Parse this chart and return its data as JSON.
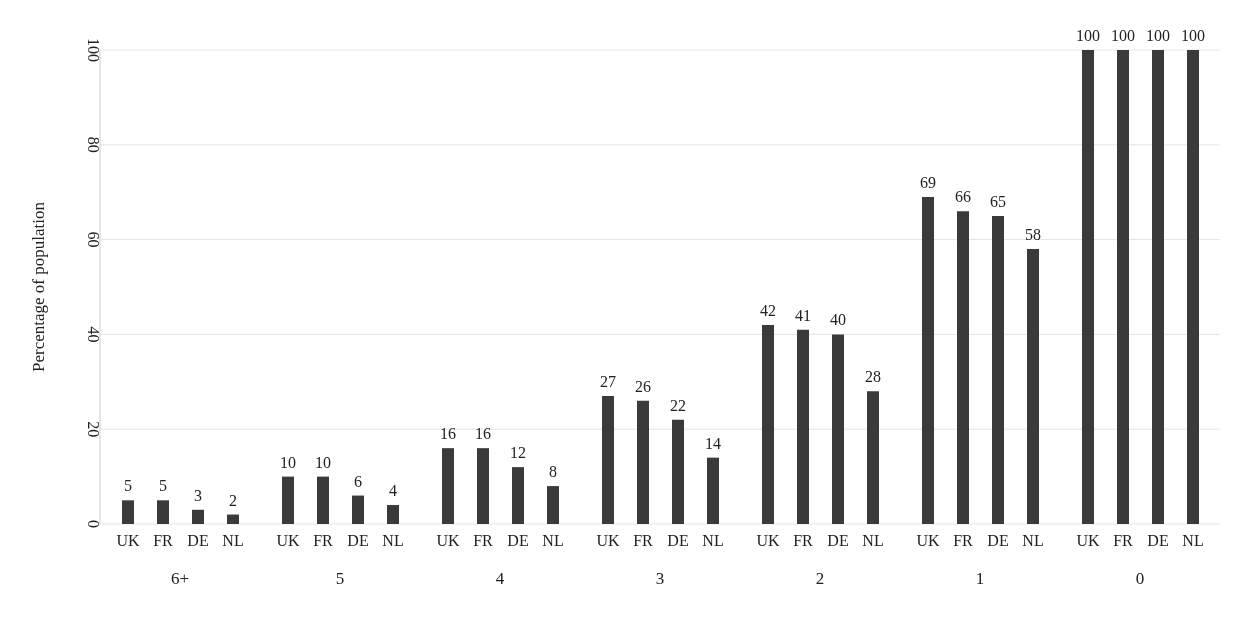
{
  "chart_data": {
    "type": "bar",
    "ylabel": "Percentage of population",
    "categories": [
      "6+",
      "5",
      "4",
      "3",
      "2",
      "1",
      "0"
    ],
    "series": [
      {
        "name": "UK",
        "color": "#3a3a3a",
        "values": [
          5,
          10,
          16,
          27,
          42,
          69,
          100
        ]
      },
      {
        "name": "FR",
        "color": "#3a3a3a",
        "values": [
          5,
          10,
          16,
          26,
          41,
          66,
          100
        ]
      },
      {
        "name": "DE",
        "color": "#3a3a3a",
        "values": [
          3,
          6,
          12,
          22,
          40,
          65,
          100
        ]
      },
      {
        "name": "NL",
        "color": "#3a3a3a",
        "values": [
          2,
          4,
          8,
          14,
          28,
          58,
          100
        ]
      }
    ],
    "ylim": [
      0,
      100
    ],
    "yticks": [
      0,
      20,
      40,
      60,
      80,
      100
    ],
    "grid": "y",
    "data_labels": true,
    "legend": false
  }
}
